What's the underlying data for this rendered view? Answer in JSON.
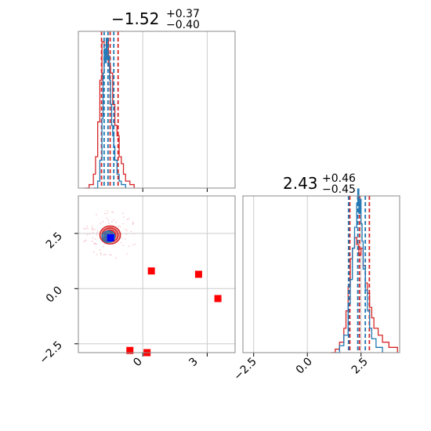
{
  "chart_data": [
    {
      "type": "histogram",
      "panel": "top-left",
      "title": {
        "value": "−1.52",
        "plus": "+0.37",
        "minus": "−0.40"
      },
      "xlim": [
        -3.0,
        4.3
      ],
      "series": [
        {
          "name": "",
          "color": "#d62728",
          "x": [
            -2.7,
            -2.5,
            -2.3,
            -2.2,
            -2.1,
            -2.0,
            -1.9,
            -1.8,
            -1.7,
            -1.6,
            -1.5,
            -1.4,
            -1.3,
            -1.2,
            -1.1,
            -1.0,
            -0.9,
            -0.8,
            -0.6,
            -0.4
          ],
          "y": [
            0.0,
            0.02,
            0.08,
            0.18,
            0.38,
            0.62,
            0.84,
            0.82,
            0.86,
            0.7,
            0.66,
            0.48,
            0.36,
            0.3,
            0.18,
            0.14,
            0.08,
            0.04,
            0.02,
            0.0
          ],
          "quantiles": [
            -1.92,
            -1.52,
            -1.15
          ]
        },
        {
          "name": "",
          "color": "#1f77b4",
          "x": [
            -2.3,
            -2.1,
            -2.0,
            -1.9,
            -1.85,
            -1.8,
            -1.75,
            -1.7,
            -1.65,
            -1.6,
            -1.55,
            -1.5,
            -1.45,
            -1.4,
            -1.35,
            -1.3,
            -1.2,
            -1.1,
            -1.0,
            -0.8
          ],
          "y": [
            0.0,
            0.04,
            0.16,
            0.4,
            0.66,
            0.8,
            0.72,
            0.86,
            0.74,
            0.76,
            0.62,
            0.48,
            0.36,
            0.3,
            0.24,
            0.16,
            0.08,
            0.04,
            0.02,
            0.0
          ],
          "quantiles": [
            -1.8,
            -1.62,
            -1.35
          ]
        }
      ]
    },
    {
      "type": "scatter",
      "panel": "bottom-left",
      "xlim": [
        -3.0,
        4.3
      ],
      "ylim": [
        -2.9,
        4.2
      ],
      "xticks": [
        "0",
        "3"
      ],
      "yticks": [
        "−2.5",
        "0.0",
        "2.5"
      ],
      "ytick_values": [
        -2.5,
        0.0,
        2.5
      ],
      "contours": [
        {
          "name": "",
          "color": "#d62728",
          "center": [
            -1.52,
            2.43
          ],
          "levels": [
            0.4,
            0.85,
            1.25,
            1.6
          ]
        },
        {
          "name": "",
          "color": "#1f77b4",
          "center": [
            -1.6,
            2.35
          ],
          "levels": [
            0.3,
            0.65,
            1.0
          ]
        }
      ],
      "points": [
        {
          "x": -1.5,
          "y": 2.3,
          "color": "#0000ff"
        },
        {
          "x": 0.4,
          "y": 0.8,
          "color": "#ff0000"
        },
        {
          "x": 2.6,
          "y": 0.65,
          "color": "#ff0000"
        },
        {
          "x": 3.5,
          "y": -0.45,
          "color": "#ff0000"
        },
        {
          "x": -0.6,
          "y": -2.8,
          "color": "#ff0000"
        },
        {
          "x": 0.2,
          "y": -2.9,
          "color": "#ff0000"
        }
      ]
    },
    {
      "type": "histogram",
      "panel": "bottom-right",
      "title": {
        "value": "2.43",
        "plus": "+0.46",
        "minus": "−0.45"
      },
      "xlim": [
        -3.0,
        4.3
      ],
      "xticks": [
        "−2.5",
        "0.0",
        "2.5"
      ],
      "xtick_values": [
        -2.5,
        0.0,
        2.5
      ],
      "series": [
        {
          "name": "",
          "color": "#d62728",
          "x": [
            1.1,
            1.3,
            1.5,
            1.7,
            1.8,
            1.9,
            2.0,
            2.1,
            2.2,
            2.3,
            2.4,
            2.5,
            2.6,
            2.7,
            2.8,
            2.9,
            3.0,
            3.1,
            3.3,
            3.5,
            3.8,
            4.2
          ],
          "y": [
            0.0,
            0.02,
            0.06,
            0.14,
            0.24,
            0.38,
            0.54,
            0.6,
            0.66,
            0.62,
            0.56,
            0.6,
            0.5,
            0.4,
            0.34,
            0.26,
            0.2,
            0.14,
            0.1,
            0.06,
            0.03,
            0.0
          ],
          "quantiles": [
            1.98,
            2.43,
            2.89
          ]
        },
        {
          "name": "",
          "color": "#1f77b4",
          "x": [
            1.3,
            1.5,
            1.7,
            1.9,
            2.0,
            2.1,
            2.2,
            2.3,
            2.35,
            2.4,
            2.45,
            2.5,
            2.55,
            2.6,
            2.7,
            2.8,
            2.9,
            3.0,
            3.2,
            3.5
          ],
          "y": [
            0.0,
            0.04,
            0.1,
            0.28,
            0.42,
            0.6,
            0.72,
            0.86,
            0.94,
            0.8,
            0.88,
            0.74,
            0.64,
            0.48,
            0.36,
            0.24,
            0.14,
            0.08,
            0.03,
            0.0
          ],
          "quantiles": [
            1.92,
            2.35,
            2.7
          ]
        }
      ]
    }
  ]
}
